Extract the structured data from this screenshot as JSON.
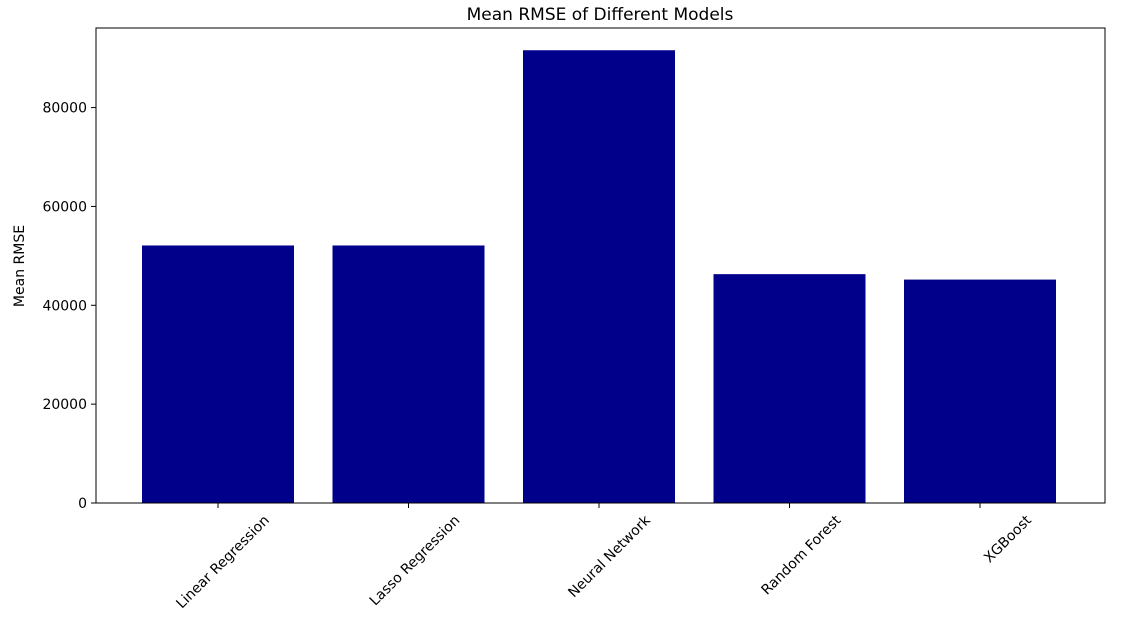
{
  "chart_data": {
    "type": "bar",
    "title": "Mean RMSE of Different Models",
    "xlabel": "",
    "ylabel": "Mean RMSE",
    "categories": [
      "Linear Regression",
      "Lasso Regression",
      "Neural Network",
      "Random Forest",
      "XGBoost"
    ],
    "values": [
      52100,
      52100,
      91600,
      46300,
      45200
    ],
    "ylim": [
      0,
      96100
    ],
    "yticks": [
      0,
      20000,
      40000,
      60000,
      80000
    ],
    "bar_color": "#00008b",
    "grid": false,
    "legend": "none"
  }
}
